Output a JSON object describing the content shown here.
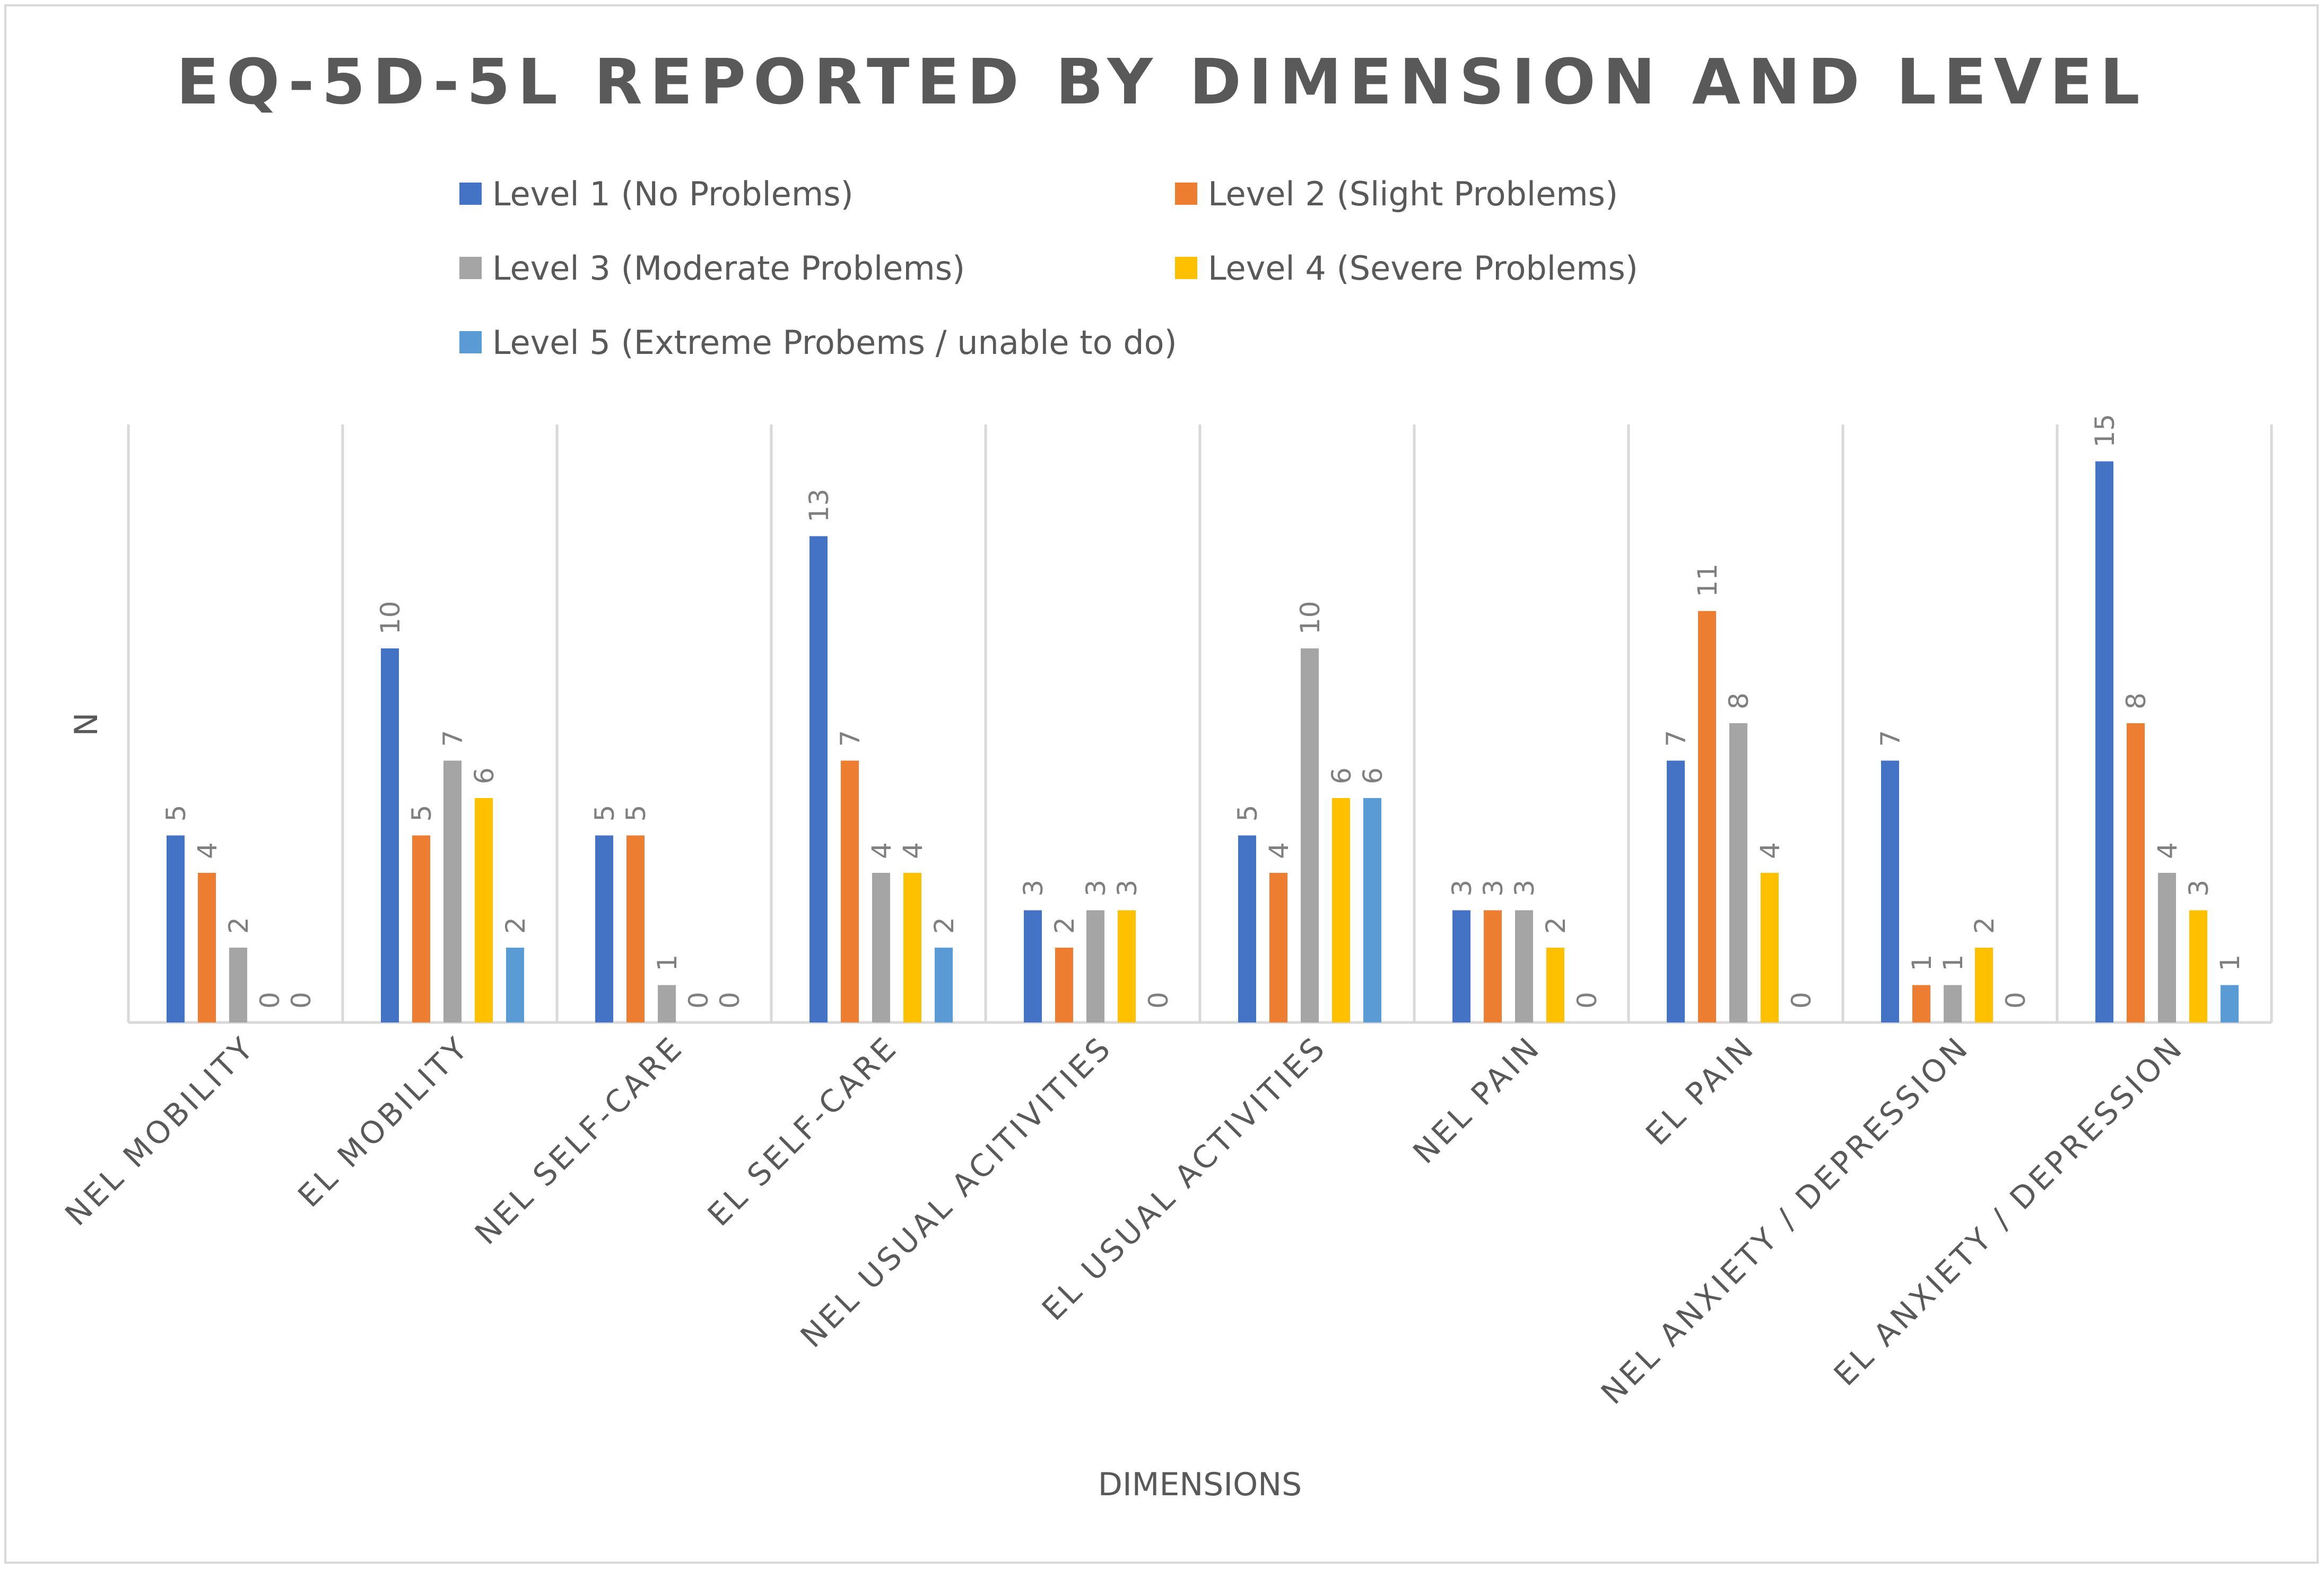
{
  "chart_data": {
    "type": "bar",
    "title": "EQ-5D-5L REPORTED BY DIMENSION AND LEVEL",
    "xlabel": "DIMENSIONS",
    "ylabel": "N",
    "ylim": [
      0,
      16
    ],
    "grid": "vertical category separators",
    "legend_position": "top",
    "categories": [
      "NEL MOBILITY",
      "EL MOBILITY",
      "NEL SELF-CARE",
      "EL SELF-CARE",
      "NEL USUAL ACITIVITIES",
      "EL USUAL ACTIVITIES",
      "NEL PAIN",
      "EL PAIN",
      "NEL ANXIETY / DEPRESSION",
      "EL ANXIETY / DEPRESSION"
    ],
    "series": [
      {
        "name": "Level 1 (No Problems)",
        "color": "#4472c4",
        "values": [
          5,
          10,
          5,
          13,
          3,
          5,
          3,
          7,
          7,
          15
        ]
      },
      {
        "name": "Level 2 (Slight Problems)",
        "color": "#ed7d31",
        "values": [
          4,
          5,
          5,
          7,
          2,
          4,
          3,
          11,
          1,
          8
        ]
      },
      {
        "name": "Level 3 (Moderate Problems)",
        "color": "#a5a5a5",
        "values": [
          2,
          7,
          1,
          4,
          3,
          10,
          3,
          8,
          1,
          4
        ]
      },
      {
        "name": "Level 4 (Severe Problems)",
        "color": "#ffc000",
        "values": [
          0,
          6,
          0,
          4,
          3,
          6,
          2,
          4,
          2,
          3
        ]
      },
      {
        "name": "Level 5 (Extreme Probems / unable to do)",
        "color": "#5b9bd5",
        "values": [
          0,
          2,
          0,
          2,
          0,
          6,
          0,
          0,
          0,
          1
        ]
      }
    ]
  }
}
